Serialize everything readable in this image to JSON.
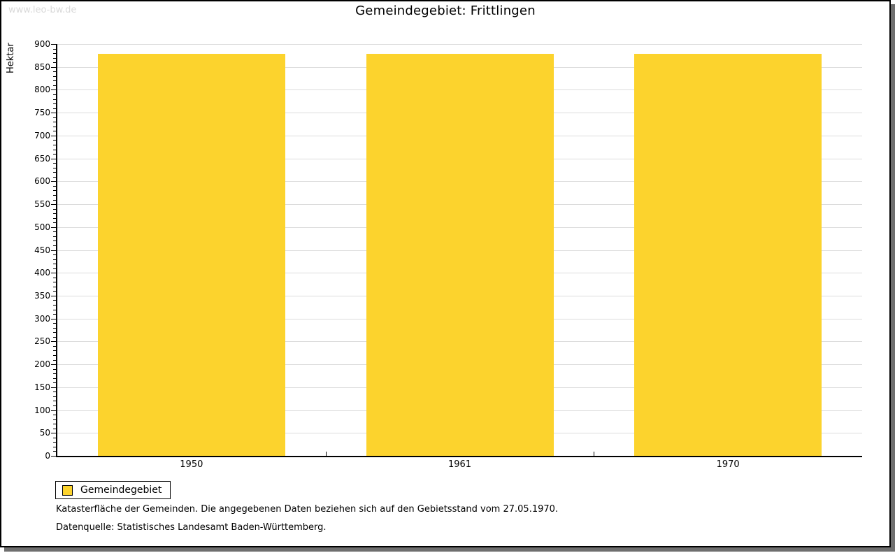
{
  "watermark": "www.leo-bw.de",
  "title": "Gemeindegebiet: Frittlingen",
  "chart_data": {
    "type": "bar",
    "title": "Gemeindegebiet: Frittlingen",
    "categories": [
      "1950",
      "1961",
      "1970"
    ],
    "series": [
      {
        "name": "Gemeindegebiet",
        "values": [
          878,
          878,
          878
        ],
        "color": "#fcd32d"
      }
    ],
    "xlabel": "",
    "ylabel": "Hektar",
    "ylim": [
      0,
      900
    ],
    "ytick_major": 50,
    "ytick_minor": 10,
    "grid": true,
    "legend_position": "bottom-left"
  },
  "legend": {
    "items": [
      {
        "label": "Gemeindegebiet",
        "color": "#fcd32d"
      }
    ]
  },
  "footnotes": [
    "Katasterfläche der Gemeinden. Die angegebenen Daten beziehen sich auf den Gebietsstand vom 27.05.1970.",
    "Datenquelle: Statistisches Landesamt Baden-Württemberg."
  ],
  "colors": {
    "bar": "#fcd32d",
    "gridline": "#dcdcdc",
    "axis": "#000000",
    "watermark": "#d9d9d9",
    "frame_shadow": "#6f6f6f"
  }
}
